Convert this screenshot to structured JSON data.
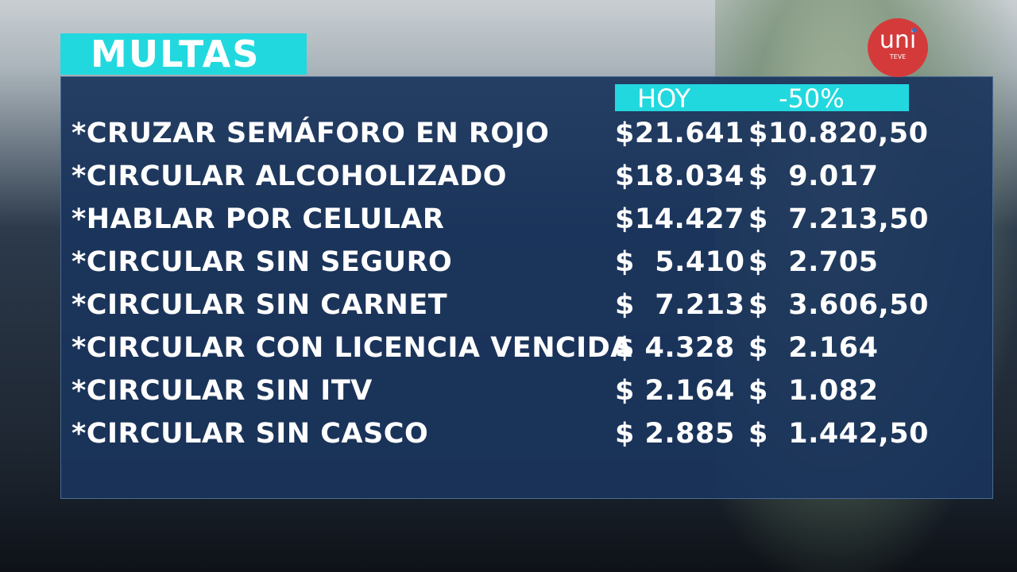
{
  "title": "MULTAS",
  "logo": {
    "main": "uni",
    "sub": "TEVE"
  },
  "columns": {
    "today": "HOY",
    "discount": "-50%"
  },
  "rows": [
    {
      "label": "*CRUZAR SEMÁFORO EN ROJO",
      "today": "$21.641",
      "discount": "$10.820,50"
    },
    {
      "label": "*CIRCULAR ALCOHOLIZADO",
      "today": "$18.034",
      "discount": "$  9.017"
    },
    {
      "label": "*HABLAR POR CELULAR",
      "today": "$14.427",
      "discount": "$  7.213,50"
    },
    {
      "label": "*CIRCULAR SIN SEGURO",
      "today": "$  5.410",
      "discount": "$  2.705"
    },
    {
      "label": "*CIRCULAR SIN CARNET",
      "today": "$  7.213",
      "discount": "$  3.606,50"
    },
    {
      "label": "*CIRCULAR CON LICENCIA VENCIDA",
      "today": "$ 4.328",
      "discount": "$  2.164"
    },
    {
      "label": "*CIRCULAR SIN ITV",
      "today": "$ 2.164",
      "discount": "$  1.082"
    },
    {
      "label": "*CIRCULAR SIN CASCO",
      "today": "$ 2.885",
      "discount": "$  1.442,50"
    }
  ]
}
